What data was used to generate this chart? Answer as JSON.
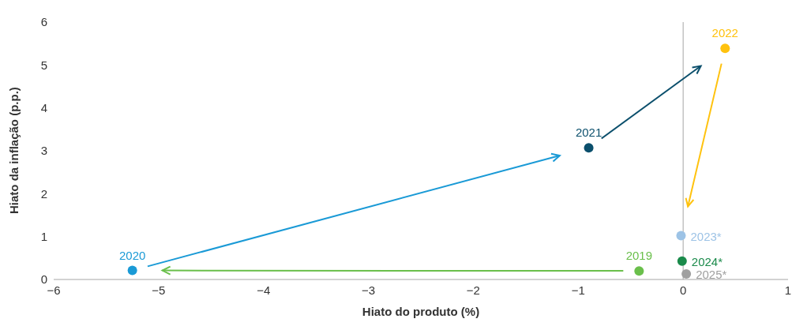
{
  "chart_data": {
    "type": "scatter",
    "xlabel": "Hiato do produto (%)",
    "ylabel": "Hiato da inflação (p.p.)",
    "xlim": [
      -6,
      1
    ],
    "xticks": [
      {
        "value": -6,
        "label": "−6"
      },
      {
        "value": -5,
        "label": "−5"
      },
      {
        "value": -4,
        "label": "−4"
      },
      {
        "value": -3,
        "label": "−3"
      },
      {
        "value": -2,
        "label": "−2"
      },
      {
        "value": -1,
        "label": "−1"
      },
      0,
      1
    ],
    "ylim": [
      0,
      6
    ],
    "yticks": [
      0,
      1,
      2,
      3,
      4,
      5,
      6
    ],
    "grid": false,
    "legend": false,
    "marker": "circle",
    "ref_lines": [
      {
        "axis": "x",
        "value": 0,
        "color": "#a6a6a6"
      }
    ],
    "series": [
      {
        "name": "2019",
        "color": "#6abf4b",
        "x": [
          -0.42
        ],
        "values": [
          0.2
        ]
      },
      {
        "name": "2020",
        "color": "#1a9ad6",
        "x": [
          -5.25
        ],
        "values": [
          0.21
        ]
      },
      {
        "name": "2021",
        "color": "#0b4f6c",
        "x": [
          -0.9
        ],
        "values": [
          3.07
        ]
      },
      {
        "name": "2022",
        "color": "#ffc20e",
        "x": [
          0.4
        ],
        "values": [
          5.39
        ]
      },
      {
        "name": "2023*",
        "color": "#9dc3e6",
        "x": [
          -0.02
        ],
        "values": [
          1.02
        ]
      },
      {
        "name": "2024*",
        "color": "#1a8a4a",
        "x": [
          -0.01
        ],
        "values": [
          0.43
        ]
      },
      {
        "name": "2025*",
        "color": "#a0a0a0",
        "x": [
          0.03
        ],
        "values": [
          0.13
        ]
      }
    ]
  }
}
